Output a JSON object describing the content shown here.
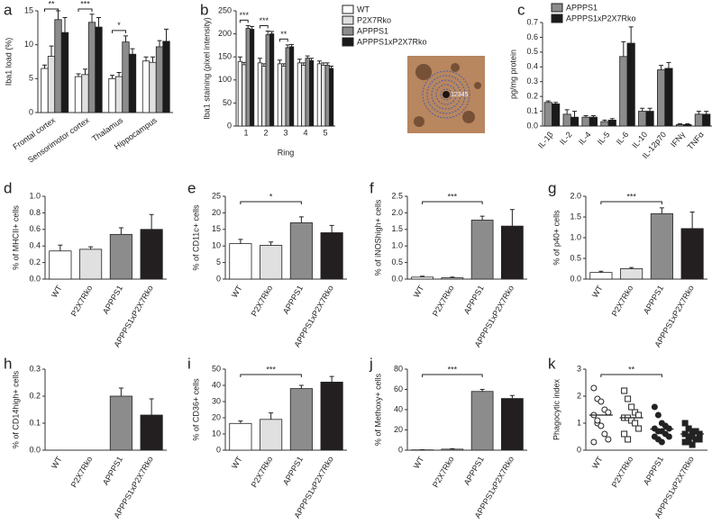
{
  "chart_data": [
    {
      "type": "grouped-bar",
      "panel": "a",
      "ylabel": "Iba1 load (%)",
      "categories": [
        "Frontal cortex",
        "Sensorimotor cortex",
        "Thalamus",
        "Hippocampus"
      ],
      "series": [
        {
          "color": "#ffffff",
          "values": [
            6.5,
            5.3,
            5.0,
            7.6
          ],
          "errors": [
            0.5,
            0.4,
            0.5,
            0.6
          ]
        },
        {
          "color": "#e0e0e0",
          "values": [
            8.3,
            5.6,
            5.3,
            7.4
          ],
          "errors": [
            1.5,
            0.8,
            0.6,
            0.8
          ]
        },
        {
          "color": "#8c8c8c",
          "values": [
            13.7,
            13.3,
            10.4,
            9.7
          ],
          "errors": [
            1.3,
            1.2,
            0.9,
            0.9
          ]
        },
        {
          "color": "#1a1a1a",
          "values": [
            11.8,
            12.6,
            8.6,
            10.5
          ],
          "errors": [
            2.2,
            1.4,
            0.8,
            1.8
          ]
        }
      ],
      "significance": [
        "**",
        "***",
        "*",
        null
      ],
      "ylim": [
        0,
        15
      ],
      "yticks": [
        0,
        5,
        10,
        15
      ]
    },
    {
      "type": "grouped-bar",
      "panel": "b",
      "ylabel": "Iba1 staining (pixel intensity)",
      "xlabel": "Ring",
      "categories": [
        "1",
        "2",
        "3",
        "4",
        "5"
      ],
      "series": [
        {
          "name": "WT",
          "color": "#ffffff",
          "values": [
            140,
            137,
            135,
            137,
            135
          ],
          "errors": [
            10,
            10,
            8,
            8,
            6
          ]
        },
        {
          "name": "P2X7Rko",
          "color": "#e0e0e0",
          "values": [
            133,
            130,
            130,
            132,
            132
          ],
          "errors": [
            5,
            5,
            5,
            5,
            5
          ]
        },
        {
          "name": "APPPS1",
          "color": "#8c8c8c",
          "values": [
            212,
            198,
            170,
            147,
            132
          ],
          "errors": [
            6,
            8,
            6,
            5,
            5
          ]
        },
        {
          "name": "APPPS1xP2X7Rko",
          "color": "#1a1a1a",
          "values": [
            210,
            200,
            172,
            142,
            125
          ],
          "errors": [
            6,
            5,
            5,
            5,
            5
          ]
        }
      ],
      "significance": [
        "***",
        "***",
        "**",
        null,
        null
      ],
      "inset_label": "12345",
      "ylim": [
        0,
        250
      ],
      "yticks": [
        0,
        50,
        100,
        150,
        200,
        250
      ]
    },
    {
      "type": "grouped-bar",
      "panel": "c",
      "ylabel": "pg/mg protein",
      "categories": [
        "IL-1β",
        "IL-2",
        "IL-4",
        "IL-5",
        "IL-6",
        "IL-10",
        "IL-12p70",
        "IFNγ",
        "TNFα"
      ],
      "series": [
        {
          "name": "APPPS1",
          "color": "#8c8c8c",
          "values": [
            0.16,
            0.08,
            0.06,
            0.03,
            0.47,
            0.1,
            0.38,
            0.01,
            0.08
          ],
          "errors": [
            0.01,
            0.03,
            0.01,
            0.01,
            0.1,
            0.02,
            0.03,
            0.005,
            0.02
          ]
        },
        {
          "name": "APPPS1xP2X7Rko",
          "color": "#1a1a1a",
          "values": [
            0.15,
            0.06,
            0.06,
            0.04,
            0.56,
            0.1,
            0.39,
            0.01,
            0.08
          ],
          "errors": [
            0.01,
            0.04,
            0.01,
            0.01,
            0.11,
            0.02,
            0.04,
            0.005,
            0.02
          ]
        }
      ],
      "ylim": [
        0,
        0.7
      ],
      "yticks": [
        {
          "value": 0,
          "label": "0.0"
        },
        0.1,
        0.2,
        0.3,
        0.4,
        0.5,
        0.6,
        0.7
      ]
    },
    {
      "type": "bar",
      "panel": "d",
      "ylabel": "% of MHCII+ cells",
      "categories": [
        "WT",
        "P2X7Rko",
        "APPPS1",
        "APPPS1xP2X7Rko"
      ],
      "colors": [
        "#ffffff",
        "#e0e0e0",
        "#8c8c8c",
        "#231f20"
      ],
      "values": [
        0.34,
        0.36,
        0.54,
        0.6
      ],
      "errors": [
        0.07,
        0.03,
        0.08,
        0.18
      ],
      "ylim": [
        0,
        1
      ],
      "yticks": [
        {
          "value": 0,
          "label": "0.0"
        },
        0.2,
        0.4,
        0.6,
        0.8,
        {
          "value": 1,
          "label": "1.0"
        }
      ]
    },
    {
      "type": "bar",
      "panel": "e",
      "ylabel": "% of CD11c+ cells",
      "categories": [
        "WT",
        "P2X7Rko",
        "APPPS1",
        "APPPS1xP2X7Rko"
      ],
      "colors": [
        "#ffffff",
        "#e0e0e0",
        "#8c8c8c",
        "#231f20"
      ],
      "values": [
        10.7,
        10.2,
        17.0,
        14.0
      ],
      "errors": [
        1.3,
        1.0,
        1.8,
        2.2
      ],
      "significance": "*",
      "ylim": [
        0,
        25
      ],
      "yticks": [
        0,
        5,
        10,
        15,
        20,
        25
      ]
    },
    {
      "type": "bar",
      "panel": "f",
      "ylabel": "% of iNOShigh+ cells",
      "categories": [
        "WT",
        "P2X7Rko",
        "APPPS1",
        "APPPS1xP2X7Rko"
      ],
      "colors": [
        "#ffffff",
        "#e0e0e0",
        "#8c8c8c",
        "#231f20"
      ],
      "values": [
        0.06,
        0.04,
        1.78,
        1.6
      ],
      "errors": [
        0.03,
        0.02,
        0.12,
        0.5
      ],
      "significance": "***",
      "ylim": [
        0,
        2.5
      ],
      "yticks": [
        {
          "value": 0,
          "label": "0.0"
        },
        0.5,
        {
          "value": 1,
          "label": "1.0"
        },
        1.5,
        {
          "value": 2,
          "label": "2.0"
        },
        2.5
      ]
    },
    {
      "type": "bar",
      "panel": "g",
      "ylabel": "% of p40+ cells",
      "categories": [
        "WT",
        "P2X7Rko",
        "APPPS1",
        "APPPS1xP2X7Rko"
      ],
      "colors": [
        "#ffffff",
        "#e0e0e0",
        "#8c8c8c",
        "#231f20"
      ],
      "values": [
        0.16,
        0.25,
        1.58,
        1.22
      ],
      "errors": [
        0.03,
        0.03,
        0.14,
        0.4
      ],
      "significance": "***",
      "ylim": [
        0,
        2
      ],
      "yticks": [
        {
          "value": 0,
          "label": "0.0"
        },
        0.5,
        {
          "value": 1,
          "label": "1.0"
        },
        1.5,
        {
          "value": 2,
          "label": "2.0"
        }
      ]
    },
    {
      "type": "bar",
      "panel": "h",
      "ylabel": "% of CD14high+ cells",
      "categories": [
        "WT",
        "P2X7Rko",
        "APPPS1",
        "APPPS1xP2X7Rko"
      ],
      "colors": [
        "#ffffff",
        "#e0e0e0",
        "#8c8c8c",
        "#231f20"
      ],
      "values": [
        0,
        0,
        0.2,
        0.13
      ],
      "errors": [
        0,
        0,
        0.03,
        0.06
      ],
      "ylim": [
        0,
        0.3
      ],
      "yticks": [
        {
          "value": 0,
          "label": "0.0"
        },
        0.1,
        0.2,
        0.3
      ]
    },
    {
      "type": "bar",
      "panel": "i",
      "ylabel": "% of CD36+ cells",
      "categories": [
        "WT",
        "P2X7Rko",
        "APPPS1",
        "APPPS1xP2X7Rko"
      ],
      "colors": [
        "#ffffff",
        "#e0e0e0",
        "#8c8c8c",
        "#231f20"
      ],
      "values": [
        16.5,
        19,
        38,
        42
      ],
      "errors": [
        1.5,
        4,
        2,
        3.5
      ],
      "significance": "***",
      "ylim": [
        0,
        50
      ],
      "yticks": [
        0,
        10,
        20,
        30,
        40,
        50
      ]
    },
    {
      "type": "bar",
      "panel": "j",
      "ylabel": "% of Methoxy+ cells",
      "categories": [
        "WT",
        "P2X7Rko",
        "APPPS1",
        "APPPS1xP2X7Rko"
      ],
      "colors": [
        "#ffffff",
        "#e0e0e0",
        "#8c8c8c",
        "#231f20"
      ],
      "values": [
        0.3,
        1,
        58,
        51
      ],
      "errors": [
        0.2,
        0.5,
        2,
        3
      ],
      "significance": "***",
      "ylim": [
        0,
        80
      ],
      "yticks": [
        0,
        20,
        40,
        60,
        80
      ]
    },
    {
      "type": "dot",
      "panel": "k",
      "ylabel": "Phagocytic index",
      "categories": [
        "WT",
        "P2X7Rko",
        "APPPS1",
        "APPPS1xP2X7Rko"
      ],
      "markers": [
        "open-circle",
        "open-square",
        "filled-circle",
        "filled-square"
      ],
      "groups": [
        [
          2.3,
          1.9,
          1.8,
          1.5,
          1.4,
          1.3,
          1.0,
          0.9,
          0.6,
          0.4,
          0.3,
          1.1
        ],
        [
          2.2,
          1.9,
          1.6,
          1.4,
          1.3,
          1.2,
          1.2,
          1.1,
          1.0,
          0.8,
          0.6,
          0.4
        ],
        [
          1.6,
          1.3,
          1.0,
          0.9,
          0.8,
          0.8,
          0.7,
          0.7,
          0.6,
          0.5,
          0.5,
          0.4,
          0.3
        ],
        [
          1.0,
          0.8,
          0.7,
          0.7,
          0.6,
          0.6,
          0.5,
          0.5,
          0.4,
          0.4,
          0.3,
          0.3,
          0.2
        ]
      ],
      "means": [
        1.3,
        1.2,
        0.78,
        0.6
      ],
      "significance": "**",
      "ylim": [
        0,
        3
      ],
      "yticks": [
        0,
        1,
        2,
        3
      ]
    }
  ]
}
